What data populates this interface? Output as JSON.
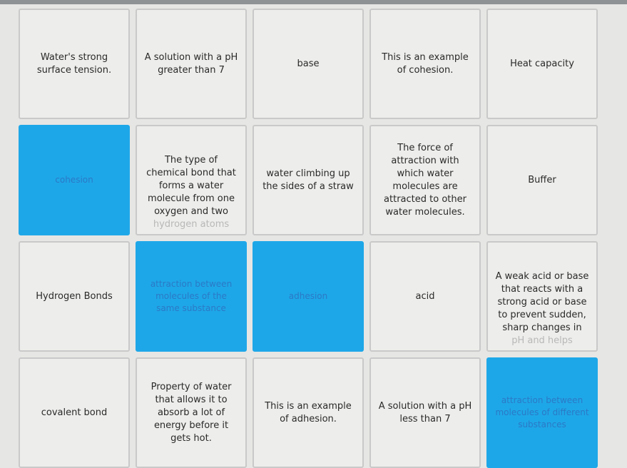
{
  "accent_color": "#1ea7e8",
  "cards": [
    {
      "text": "Water's strong surface tension.",
      "selected": false
    },
    {
      "text": "A solution with a pH greater than 7",
      "selected": false
    },
    {
      "text": "base",
      "selected": false
    },
    {
      "text": "This is an example of cohesion.",
      "selected": false
    },
    {
      "text": "Heat capacity",
      "selected": false
    },
    {
      "text": "cohesion",
      "selected": true
    },
    {
      "text": "The type of chemical bond that forms a water molecule from one oxygen and two",
      "overflow": "hydrogen atoms",
      "selected": false
    },
    {
      "text": "water climbing up the sides of a straw",
      "selected": false
    },
    {
      "text": "The force of attraction with which water molecules are attracted to other water molecules.",
      "selected": false
    },
    {
      "text": "Buffer",
      "selected": false
    },
    {
      "text": "Hydrogen Bonds",
      "selected": false
    },
    {
      "text": "attraction between molecules of the same substance",
      "selected": true
    },
    {
      "text": "adhesion",
      "selected": true
    },
    {
      "text": "acid",
      "selected": false
    },
    {
      "text": "A weak acid or base that reacts with a strong acid or base to prevent sudden, sharp changes in",
      "overflow": "pH and helps",
      "selected": false
    },
    {
      "text": "covalent bond",
      "selected": false
    },
    {
      "text": "Property of water that allows it to absorb a lot of energy before it gets hot.",
      "selected": false
    },
    {
      "text": "This is an example of adhesion.",
      "selected": false
    },
    {
      "text": "A solution with a pH less than 7",
      "selected": false
    },
    {
      "text": "attraction between molecules of different substances",
      "selected": true
    }
  ]
}
